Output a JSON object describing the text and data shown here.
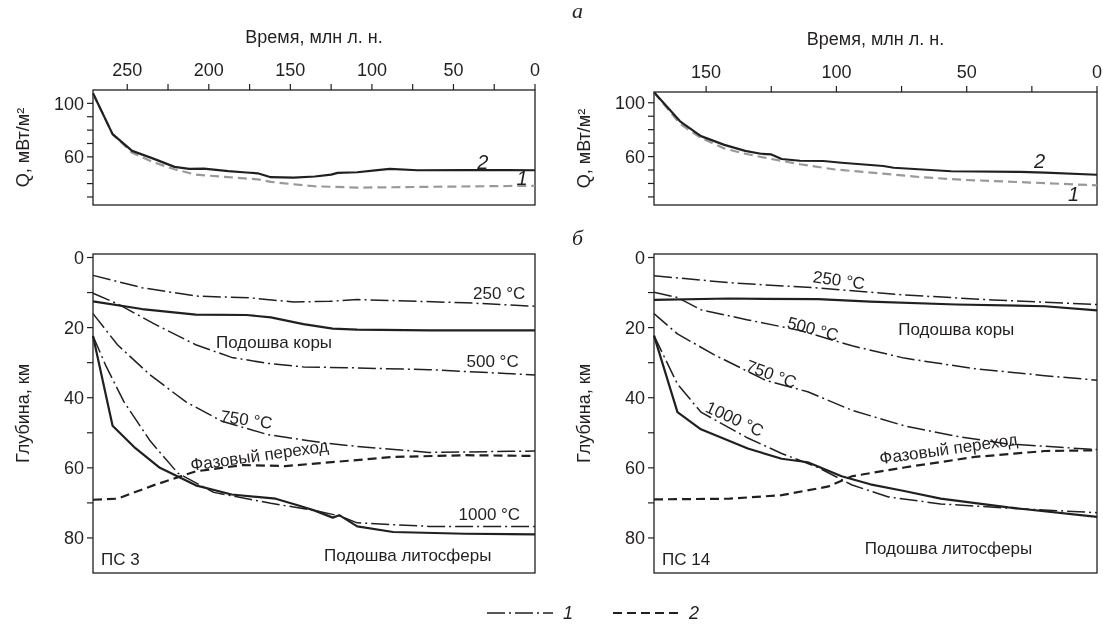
{
  "chart_data": [
    {
      "type": "line",
      "xlabel": "Время, млн л. н.",
      "ylabel": "Q, мВт/м²",
      "xlim": [
        271,
        0
      ],
      "ylim": [
        24,
        110
      ],
      "xticks": [
        250,
        {
          "value": 225,
          "label": null
        },
        200,
        {
          "value": 175,
          "label": null
        },
        150,
        {
          "value": 125,
          "label": null
        },
        100,
        {
          "value": 75,
          "label": null
        },
        50,
        {
          "value": 25,
          "label": null
        },
        0
      ],
      "yticks": [
        {
          "value": 30,
          "label": null
        },
        {
          "value": 40,
          "label": null
        },
        {
          "value": 50,
          "label": null
        },
        60,
        {
          "value": 70,
          "label": null
        },
        {
          "value": 80,
          "label": null
        },
        {
          "value": 90,
          "label": null
        },
        100
      ],
      "series": [
        {
          "name": "1",
          "color": "#999999",
          "line_style": "dashed",
          "x": [
            271,
            259,
            247,
            234,
            221,
            208,
            188,
            170,
            162,
            148,
            135,
            109,
            65,
            0
          ],
          "values": [
            107.5,
            77,
            63,
            56,
            50.7,
            46.7,
            44.8,
            43.2,
            41.3,
            39.5,
            38,
            37,
            37.6,
            38.4
          ]
        },
        {
          "name": "2",
          "color": "#231f20",
          "line_style": "solid",
          "x": [
            271,
            259,
            247,
            234,
            221,
            212,
            203,
            188,
            177,
            170,
            162,
            148,
            135,
            125,
            121,
            109,
            98,
            89,
            72,
            43,
            0
          ],
          "values": [
            107.5,
            77,
            64.5,
            58.7,
            52.5,
            51,
            51.2,
            49.3,
            48.3,
            47.7,
            44.8,
            44.5,
            45.3,
            46.7,
            48,
            48.5,
            49.9,
            51,
            50,
            50.1,
            50
          ]
        }
      ]
    },
    {
      "type": "line",
      "xlabel": "Время, млн л. н.",
      "ylabel": "Q, мВт/м²",
      "xlim": [
        170,
        0
      ],
      "ylim": [
        24,
        108
      ],
      "xticks": [
        150,
        {
          "value": 125,
          "label": null
        },
        100,
        {
          "value": 75,
          "label": null
        },
        50,
        {
          "value": 25,
          "label": null
        },
        0
      ],
      "yticks": [
        {
          "value": 30,
          "label": null
        },
        {
          "value": 40,
          "label": null
        },
        {
          "value": 50,
          "label": null
        },
        60,
        {
          "value": 70,
          "label": null
        },
        {
          "value": 80,
          "label": null
        },
        {
          "value": 90,
          "label": null
        },
        100
      ],
      "annotations": [
        "а"
      ],
      "series": [
        {
          "name": "1",
          "color": "#999999",
          "line_style": "dashed",
          "x": [
            170,
            160,
            152,
            143,
            135,
            125,
            114,
            100.5,
            82,
            67,
            50,
            25.5,
            0
          ],
          "values": [
            107.8,
            84.3,
            73.9,
            66,
            62.1,
            58.2,
            54.3,
            50.4,
            47.3,
            44.6,
            42.6,
            40.7,
            38.6
          ]
        },
        {
          "name": "2",
          "color": "#231f20",
          "line_style": "solid",
          "x": [
            170,
            160,
            152,
            143,
            135,
            129,
            125,
            121,
            114,
            105,
            98,
            82,
            78,
            56,
            29.5,
            20,
            0
          ],
          "values": [
            107.8,
            86.2,
            75.2,
            68.7,
            64.2,
            62.1,
            61.6,
            58.2,
            56.9,
            56.7,
            55.4,
            53,
            51.7,
            49.1,
            48.6,
            48,
            46.5
          ]
        }
      ]
    },
    {
      "type": "line",
      "ylabel": "Глубина, км",
      "xlim": [
        271,
        0
      ],
      "ylim": [
        90,
        -1
      ],
      "yticks": [
        0,
        {
          "value": 10,
          "label": null
        },
        20,
        {
          "value": 30,
          "label": null
        },
        40,
        {
          "value": 50,
          "label": null
        },
        60,
        {
          "value": 70,
          "label": null
        },
        80
      ],
      "tick_labels": "y",
      "annotations": [
        "ПС 3"
      ],
      "series": [
        {
          "name": "250 °C",
          "color": "#231f20",
          "line_style": "dashdot",
          "x": [
            271,
            241,
            208,
            175,
            148,
            126,
            109,
            87,
            43,
            0
          ],
          "values": [
            5.1,
            8.6,
            11,
            11.5,
            12.7,
            12.5,
            12,
            12.3,
            12.9,
            13.9
          ]
        },
        {
          "name": "Подошва коры",
          "color": "#231f20",
          "line_style": "solid",
          "x": [
            271,
            241,
            208,
            177,
            162,
            142,
            124,
            109,
            65,
            0
          ],
          "values": [
            12.5,
            14.7,
            16.3,
            16.4,
            17.1,
            19,
            20.3,
            20.6,
            20.8,
            20.8
          ]
        },
        {
          "name": "500 °C",
          "color": "#231f20",
          "line_style": "dashdot",
          "x": [
            271,
            256,
            234,
            208,
            186,
            164,
            142,
            109,
            65,
            0
          ],
          "values": [
            10.2,
            13.2,
            18.8,
            24.9,
            28.5,
            30.2,
            31.2,
            31.5,
            32,
            33.5
          ]
        },
        {
          "name": "750 °C",
          "color": "#231f20",
          "line_style": "dashdot",
          "x": [
            271,
            256,
            236,
            214,
            192,
            164,
            131,
            109,
            65,
            0
          ],
          "values": [
            16,
            24.9,
            33.5,
            41.2,
            46.7,
            50.5,
            52.8,
            53.9,
            55.6,
            55.2
          ]
        },
        {
          "name": "Фазовый переход",
          "color": "#231f20",
          "line_style": "dashed",
          "x": [
            271,
            256,
            234,
            208,
            179,
            153,
            120,
            87,
            43,
            0
          ],
          "values": [
            69.1,
            68.8,
            65,
            61,
            59.2,
            59.5,
            58.2,
            56.9,
            56.4,
            56.6
          ]
        },
        {
          "name": "1000 °C",
          "color": "#231f20",
          "line_style": "dashdot",
          "x": [
            271,
            263,
            252,
            236,
            219,
            197,
            162,
            135,
            120,
            109,
            65,
            0
          ],
          "values": [
            22.4,
            31,
            41.2,
            52.3,
            61.5,
            67,
            70.1,
            72.2,
            73.7,
            75.7,
            76.7,
            76.7
          ]
        },
        {
          "name": "Подошва литосферы",
          "color": "#231f20",
          "line_style": "solid",
          "x": [
            271,
            259,
            245,
            230,
            208,
            186,
            159,
            146,
            135,
            124,
            120,
            109,
            87,
            43,
            0
          ],
          "values": [
            22.4,
            48,
            54.4,
            60,
            65,
            67.6,
            68.8,
            70.6,
            72.2,
            74.2,
            73.5,
            76.7,
            78.3,
            78.8,
            79
          ]
        }
      ]
    },
    {
      "type": "line",
      "ylabel": "Глубина, км",
      "xlim": [
        170,
        0
      ],
      "ylim": [
        90,
        -1
      ],
      "yticks": [
        0,
        {
          "value": 10,
          "label": null
        },
        20,
        {
          "value": 30,
          "label": null
        },
        40,
        {
          "value": 50,
          "label": null
        },
        60,
        {
          "value": 70,
          "label": null
        },
        80
      ],
      "tick_labels": "y",
      "annotations": [
        "б",
        "ПС 14"
      ],
      "series": [
        {
          "name": "250 °C",
          "color": "#231f20",
          "line_style": "dashdot",
          "x": [
            170,
            141,
            107,
            74,
            40,
            0
          ],
          "values": [
            5.2,
            7.2,
            8.7,
            10.7,
            12.1,
            13.4
          ]
        },
        {
          "name": "Подошва коры",
          "color": "#231f20",
          "line_style": "solid",
          "x": [
            170,
            141,
            107,
            87,
            54,
            20,
            0
          ],
          "values": [
            12.1,
            11.7,
            11.9,
            12.6,
            13.4,
            13.9,
            15.1
          ]
        },
        {
          "name": "500 °C",
          "color": "#231f20",
          "line_style": "dashdot",
          "x": [
            170,
            161,
            152,
            134,
            114,
            94,
            74,
            47,
            20,
            0
          ],
          "values": [
            9.9,
            11.4,
            14.9,
            17.8,
            20.8,
            25.2,
            28.7,
            31.7,
            33.7,
            35
          ]
        },
        {
          "name": "750 °C",
          "color": "#231f20",
          "line_style": "dashdot",
          "x": [
            170,
            161,
            147,
            127,
            111,
            94,
            74,
            54,
            34,
            0
          ],
          "values": [
            16,
            21.8,
            27.7,
            35.1,
            38.3,
            43.6,
            48,
            51,
            53.2,
            54.8
          ]
        },
        {
          "name": "Фазовый переход",
          "color": "#231f20",
          "line_style": "dashed",
          "x": [
            170,
            141,
            121,
            103,
            94,
            74,
            47,
            20,
            0
          ],
          "values": [
            69,
            68.8,
            67.8,
            65.3,
            62.4,
            59.9,
            56.9,
            55.2,
            55
          ]
        },
        {
          "name": "1000 °C",
          "color": "#231f20",
          "line_style": "dashdot",
          "x": [
            170,
            161,
            152,
            134,
            121,
            107,
            94,
            80,
            60,
            34,
            0
          ],
          "values": [
            22.3,
            36.1,
            44.1,
            51.5,
            55.9,
            59.9,
            64.9,
            68.3,
            70.3,
            71.5,
            72.8
          ]
        },
        {
          "name": "Подошва литосферы",
          "color": "#231f20",
          "line_style": "solid",
          "x": [
            170,
            161,
            152,
            134,
            121,
            111,
            98,
            87,
            74,
            60,
            34,
            0
          ],
          "values": [
            22.3,
            44.1,
            49,
            54.5,
            57.4,
            58.4,
            62.4,
            64.7,
            66.6,
            68.8,
            71.3,
            74
          ]
        }
      ]
    },
    {
      "type": "other",
      "series": [
        {
          "name": "1",
          "color": "#231f20",
          "line_style": "dashdot"
        },
        {
          "name": "2",
          "color": "#231f20",
          "line_style": "dashed"
        }
      ]
    }
  ]
}
